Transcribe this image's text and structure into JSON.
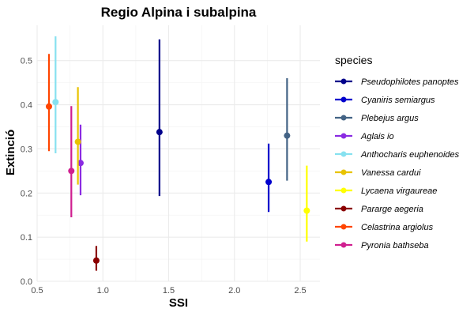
{
  "chart_data": {
    "type": "scatter",
    "title": "Regio Alpina i subalpina",
    "xlabel": "SSI",
    "ylabel": "Extinció",
    "xlim": [
      0.5,
      2.65
    ],
    "ylim": [
      0.0,
      0.58
    ],
    "x_ticks": [
      0.5,
      1.0,
      1.5,
      2.0,
      2.5
    ],
    "x_tick_labels": [
      "0.5",
      "1.0",
      "1.5",
      "2.0",
      "2.5"
    ],
    "y_ticks": [
      0.0,
      0.1,
      0.2,
      0.3,
      0.4,
      0.5
    ],
    "y_tick_labels": [
      "0.0",
      "0.1",
      "0.2",
      "0.3",
      "0.4",
      "0.5"
    ],
    "grid": true,
    "legend_title": "species",
    "legend_position": "right",
    "series": [
      {
        "name": "Pseudophilotes panoptes",
        "color": "#00008B",
        "x": 1.43,
        "y": 0.338,
        "ymin": 0.193,
        "ymax": 0.548
      },
      {
        "name": "Cyaniris semiargus",
        "color": "#0000CD",
        "x": 2.26,
        "y": 0.225,
        "ymin": 0.157,
        "ymax": 0.312
      },
      {
        "name": "Plebejus argus",
        "color": "#436385",
        "x": 2.4,
        "y": 0.33,
        "ymin": 0.228,
        "ymax": 0.46
      },
      {
        "name": "Aglais io",
        "color": "#8A2BE2",
        "x": 0.83,
        "y": 0.268,
        "ymin": 0.195,
        "ymax": 0.355
      },
      {
        "name": "Anthocharis euphenoides",
        "color": "#87E1F0",
        "x": 0.64,
        "y": 0.406,
        "ymin": 0.29,
        "ymax": 0.555
      },
      {
        "name": "Vanessa cardui",
        "color": "#E8C300",
        "x": 0.81,
        "y": 0.316,
        "ymin": 0.219,
        "ymax": 0.44
      },
      {
        "name": "Lycaena virgaureae",
        "color": "#FFFF00",
        "x": 2.55,
        "y": 0.16,
        "ymin": 0.09,
        "ymax": 0.262
      },
      {
        "name": "Pararge aegeria",
        "color": "#8B0000",
        "x": 0.95,
        "y": 0.047,
        "ymin": 0.024,
        "ymax": 0.08
      },
      {
        "name": "Celastrina argiolus",
        "color": "#FF4500",
        "x": 0.59,
        "y": 0.396,
        "ymin": 0.295,
        "ymax": 0.515
      },
      {
        "name": "Pyronia bathseba",
        "color": "#D02090",
        "x": 0.76,
        "y": 0.25,
        "ymin": 0.145,
        "ymax": 0.397
      }
    ]
  }
}
